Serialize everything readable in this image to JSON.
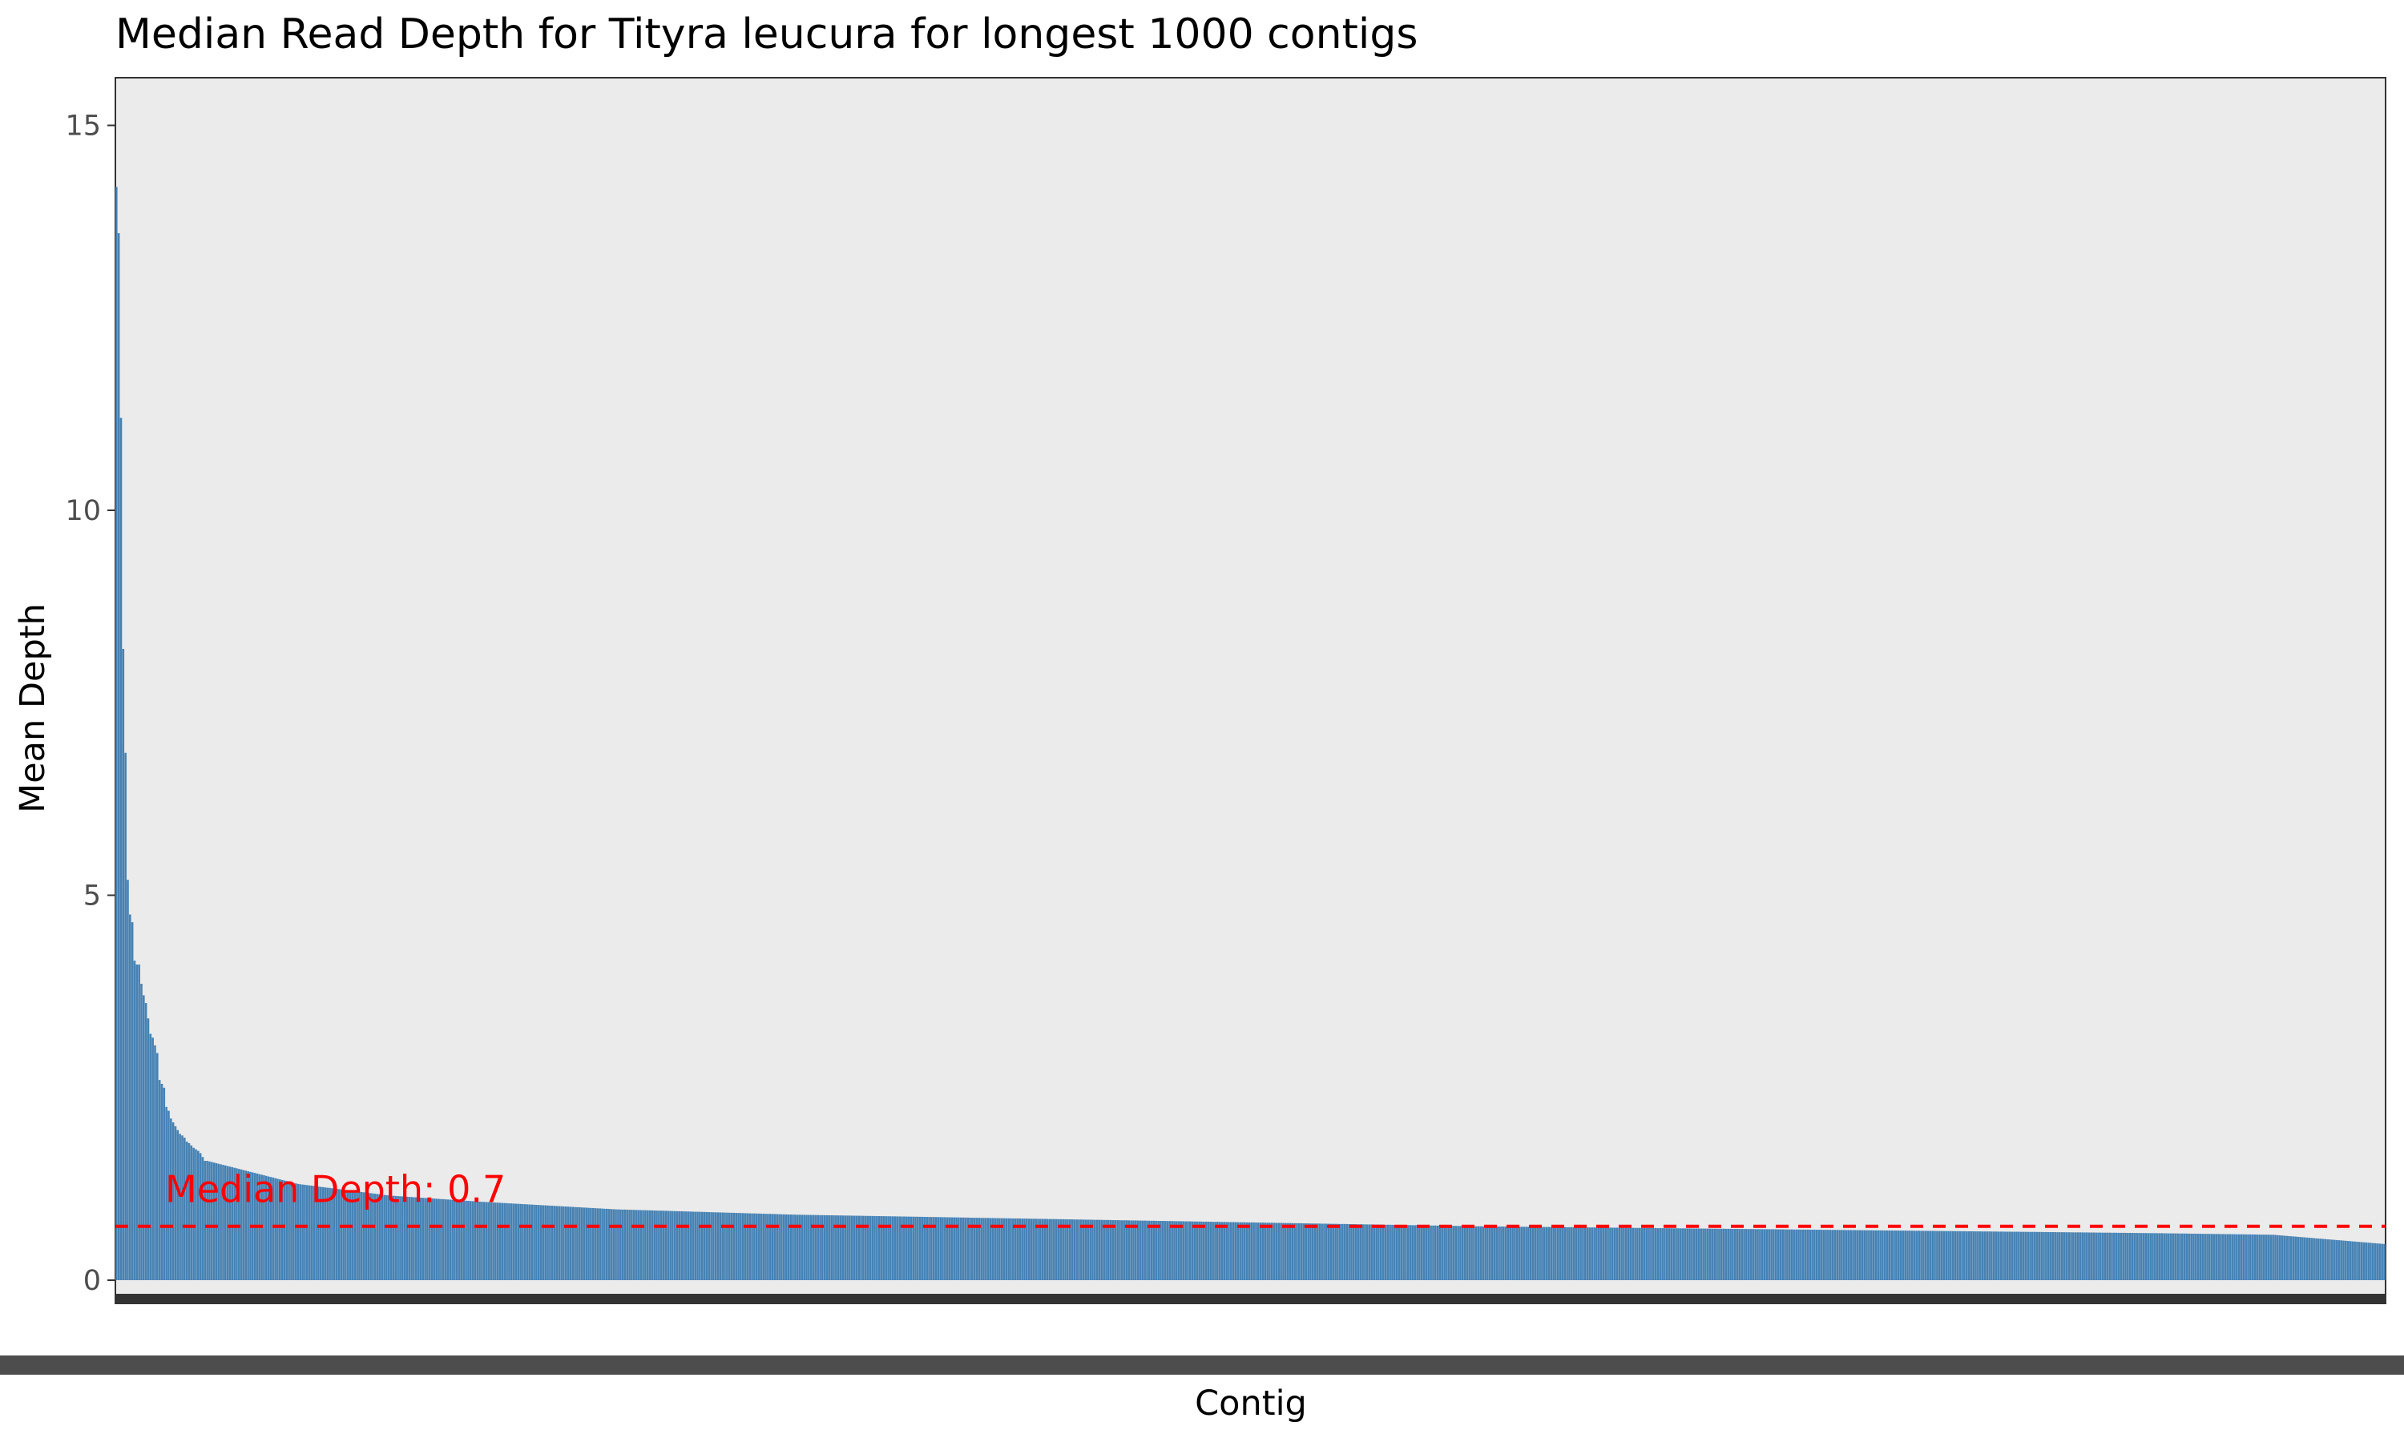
{
  "chart_data": {
    "type": "bar",
    "title": "Median Read Depth for Tityra leucura for longest 1000 contigs",
    "xlabel": "Contig",
    "ylabel": "Mean Depth",
    "ylim": [
      0,
      15.6
    ],
    "yticks": [
      0,
      5,
      10,
      15
    ],
    "ytick_labels": [
      "0",
      "5",
      "10",
      "15"
    ],
    "grid": false,
    "legend": "none",
    "bar_count": 1000,
    "sort": "descending",
    "head_values": [
      14.2,
      13.6,
      11.2,
      8.2,
      6.85,
      5.2,
      4.75,
      4.65,
      4.15,
      4.1,
      4.1,
      3.85,
      3.7,
      3.6,
      3.4,
      3.2,
      3.15,
      3.05,
      2.95,
      2.6,
      2.55,
      2.5,
      2.25,
      2.2,
      2.1,
      2.05,
      2.0,
      1.95,
      1.9,
      1.88,
      1.85,
      1.8,
      1.78,
      1.75,
      1.72,
      1.7,
      1.68,
      1.65,
      1.6,
      1.55
    ],
    "tail_anchors": [
      [
        40,
        1.55
      ],
      [
        80,
        1.25
      ],
      [
        120,
        1.1
      ],
      [
        160,
        1.02
      ],
      [
        220,
        0.92
      ],
      [
        300,
        0.85
      ],
      [
        400,
        0.8
      ],
      [
        500,
        0.75
      ],
      [
        600,
        0.7
      ],
      [
        700,
        0.67
      ],
      [
        800,
        0.64
      ],
      [
        900,
        0.61
      ],
      [
        950,
        0.59
      ],
      [
        999,
        0.47
      ]
    ],
    "median_line": {
      "value": 0.7,
      "label": "Median Depth: 0.7",
      "style": "dashed"
    },
    "colors": {
      "bar": "#4682b4",
      "panel": "#ebebeb",
      "median": "#ff0000",
      "axis_band": "#333333",
      "scroll_band": "#4d4d4d"
    }
  }
}
